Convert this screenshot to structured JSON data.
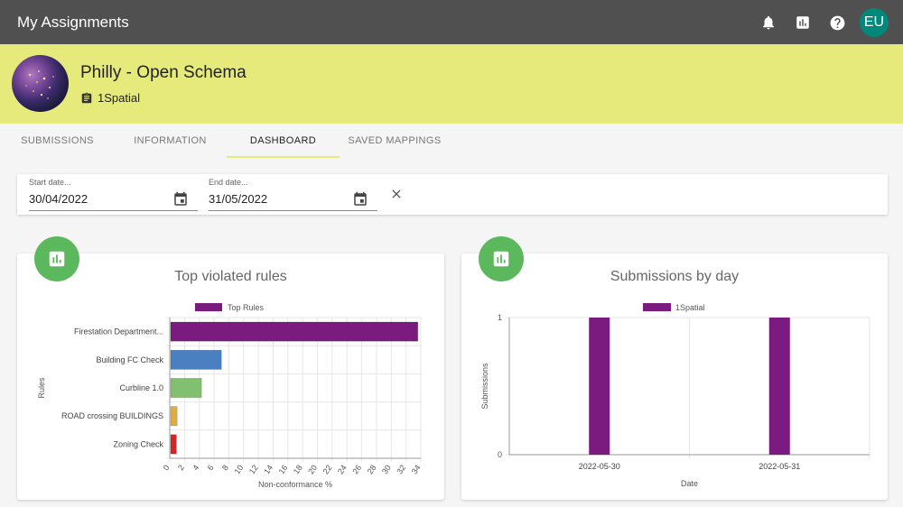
{
  "app": {
    "title": "My Assignments",
    "avatar_initials": "EU"
  },
  "topbar_icons": [
    "notifications-icon",
    "bar-chart-icon",
    "help-icon"
  ],
  "project": {
    "name": "Philly - Open Schema",
    "organization": "1Spatial"
  },
  "tabs": [
    {
      "label": "SUBMISSIONS",
      "active": false
    },
    {
      "label": "INFORMATION",
      "active": false
    },
    {
      "label": "DASHBOARD",
      "active": true
    },
    {
      "label": "SAVED MAPPINGS",
      "active": false
    }
  ],
  "filters": {
    "start": {
      "label": "Start date...",
      "value": "30/04/2022"
    },
    "end": {
      "label": "End date...",
      "value": "31/05/2022"
    }
  },
  "colors": {
    "topbar": "#505050",
    "header": "#e6ea7a",
    "badge": "#5cb85c",
    "avatar": "#00897b",
    "series": "#7b1a7f"
  },
  "chart_data": [
    {
      "type": "bar",
      "orientation": "horizontal",
      "title": "Top violated rules",
      "legend": "Top Rules",
      "legend_position": "top",
      "xlabel": "Non-conformance %",
      "ylabel": "Rules",
      "xlim": [
        0,
        34
      ],
      "xticks": [
        "0",
        "2",
        "4",
        "6",
        "8",
        "10",
        "12",
        "14",
        "16",
        "18",
        "20",
        "22",
        "24",
        "26",
        "28",
        "30",
        "32",
        "34"
      ],
      "categories": [
        "Firestation Department...",
        "Building FC Check",
        "Curbline 1.0",
        "ROAD crossing BUILDINGS",
        "Zoning Check"
      ],
      "values": [
        33.6,
        7.0,
        4.3,
        1.0,
        0.9
      ],
      "bar_colors": [
        "#7b1a7f",
        "#4a7fc1",
        "#82c071",
        "#e0ad3c",
        "#d32727"
      ],
      "grid": true
    },
    {
      "type": "bar",
      "title": "Submissions by day",
      "legend": "1Spatial",
      "legend_position": "top",
      "xlabel": "Date",
      "ylabel": "Submissions",
      "ylim": [
        0,
        1
      ],
      "yticks": [
        "0",
        "1"
      ],
      "categories": [
        "2022-05-30",
        "2022-05-31"
      ],
      "values": [
        1,
        1
      ],
      "bar_color": "#7b1a7f",
      "grid": true
    }
  ]
}
